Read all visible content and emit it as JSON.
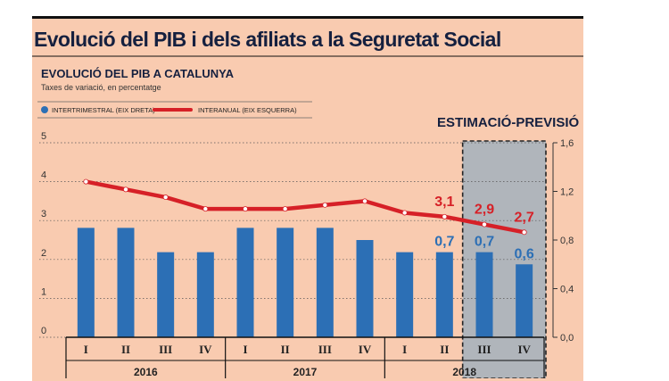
{
  "header": {
    "title": "Evolució del PIB i dels afiliats a la Seguretat Social",
    "subtitle": "EVOLUCIÓ DEL PIB A CATALUNYA",
    "caption": "Taxes de variació, en percentatge"
  },
  "legend": {
    "bar_label": "INTERTRIMESTRAL (EIX DRETA)",
    "line_label": "INTERANUAL (EIX ESQUERRA)"
  },
  "estimate": {
    "label": "ESTIMACIÓ-PREVISIÓ"
  },
  "colors": {
    "bar": "#2c6fb5",
    "line": "#d62027",
    "panel": "#f9cbb0",
    "estimate_shade": "#a7b2bd"
  },
  "chart_data": {
    "type": "bar",
    "categories": [
      "I",
      "II",
      "III",
      "IV",
      "I",
      "II",
      "III",
      "IV",
      "I",
      "II",
      "III",
      "IV"
    ],
    "years": [
      {
        "label": "2016",
        "start": 0,
        "end": 3
      },
      {
        "label": "2017",
        "start": 4,
        "end": 7
      },
      {
        "label": "2018",
        "start": 8,
        "end": 11
      }
    ],
    "series": [
      {
        "name": "INTERTRIMESTRAL (EIX DRETA)",
        "type": "bar",
        "axis": "right",
        "values": [
          0.9,
          0.9,
          0.7,
          0.7,
          0.9,
          0.9,
          0.9,
          0.8,
          0.7,
          0.7,
          0.7,
          0.6
        ]
      },
      {
        "name": "INTERANUAL (EIX ESQUERRA)",
        "type": "line",
        "axis": "left",
        "values": [
          4.0,
          3.8,
          3.6,
          3.3,
          3.3,
          3.3,
          3.4,
          3.5,
          3.2,
          3.1,
          2.9,
          2.7
        ]
      }
    ],
    "left_axis": {
      "ylim": [
        0,
        5
      ],
      "ticks": [
        "0",
        "1",
        "2",
        "3",
        "4",
        "5"
      ]
    },
    "right_axis": {
      "ylim": [
        0,
        1.6
      ],
      "ticks": [
        "0,0",
        "0,4",
        "0,8",
        "1,2",
        "1,6"
      ]
    },
    "estimate_range": [
      10,
      11
    ],
    "labels": [
      {
        "index": 9,
        "series": "line",
        "text": "3,1"
      },
      {
        "index": 10,
        "series": "line",
        "text": "2,9"
      },
      {
        "index": 11,
        "series": "line",
        "text": "2,7"
      },
      {
        "index": 9,
        "series": "bar",
        "text": "0,7"
      },
      {
        "index": 10,
        "series": "bar",
        "text": "0,7"
      },
      {
        "index": 11,
        "series": "bar",
        "text": "0,6"
      }
    ]
  }
}
